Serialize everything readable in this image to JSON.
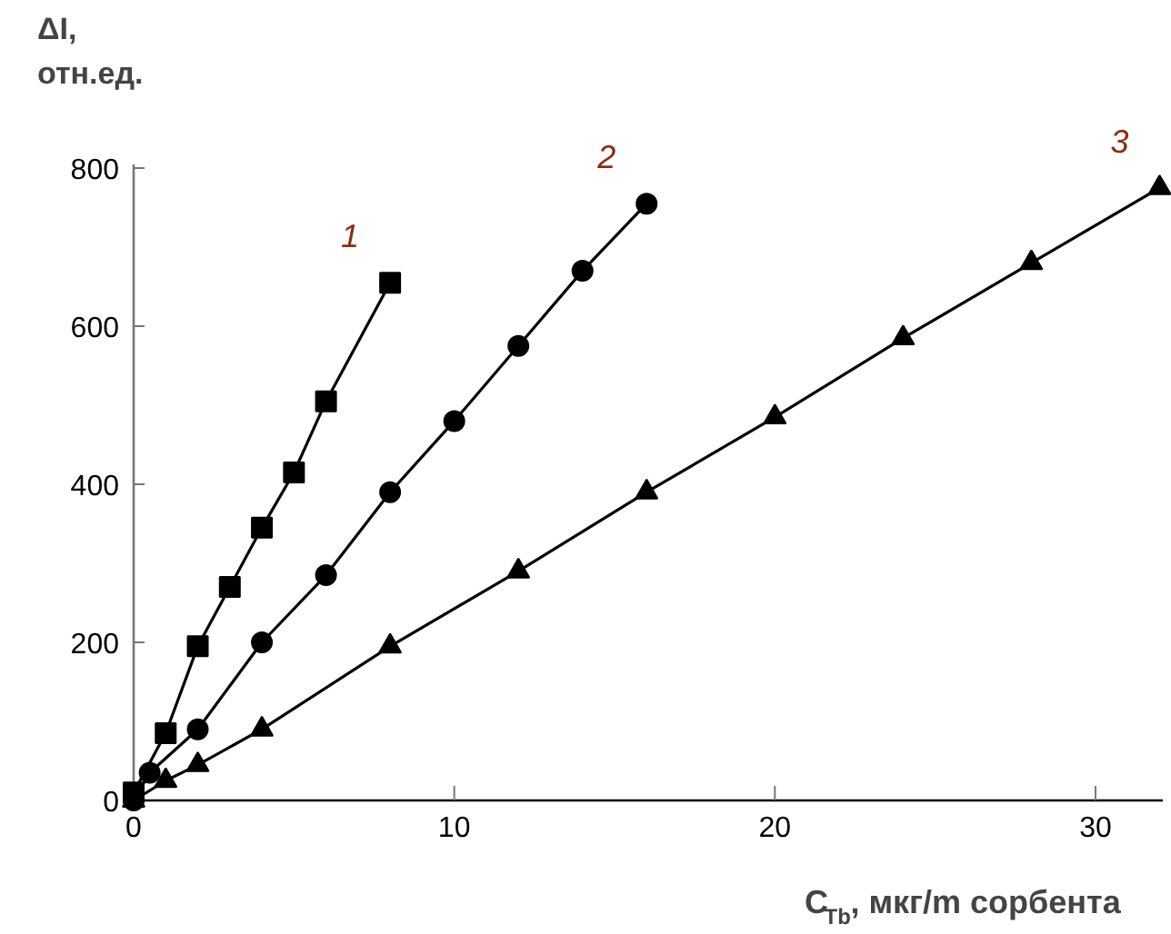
{
  "chart_data": {
    "type": "line",
    "xlabel": "C$_{Tb}$, мкг/m сорбента",
    "ylabel": "ΔI,\nотн.ед.",
    "xlim": [
      0,
      32.1
    ],
    "ylim": [
      0,
      800
    ],
    "xticks": [
      0,
      10,
      20,
      30
    ],
    "yticks": [
      0,
      200,
      400,
      600,
      800
    ],
    "grid": false,
    "series": [
      {
        "name": "1",
        "color": "#000000",
        "marker": "square",
        "x": [
          0,
          1,
          2,
          3,
          4,
          5,
          6,
          8
        ],
        "values": [
          10,
          85,
          195,
          270,
          345,
          415,
          505,
          655
        ]
      },
      {
        "name": "2",
        "color": "#000000",
        "marker": "circle",
        "x": [
          0,
          0.5,
          2,
          4,
          6,
          8,
          10,
          12,
          14,
          16
        ],
        "values": [
          0,
          35,
          90,
          200,
          285,
          390,
          480,
          575,
          670,
          755
        ]
      },
      {
        "name": "3",
        "color": "#000000",
        "marker": "triangle",
        "x": [
          0,
          1,
          2,
          4,
          8,
          12,
          16,
          20,
          24,
          28,
          32
        ],
        "values": [
          0,
          25,
          45,
          90,
          195,
          290,
          390,
          485,
          585,
          680,
          775
        ]
      }
    ]
  }
}
